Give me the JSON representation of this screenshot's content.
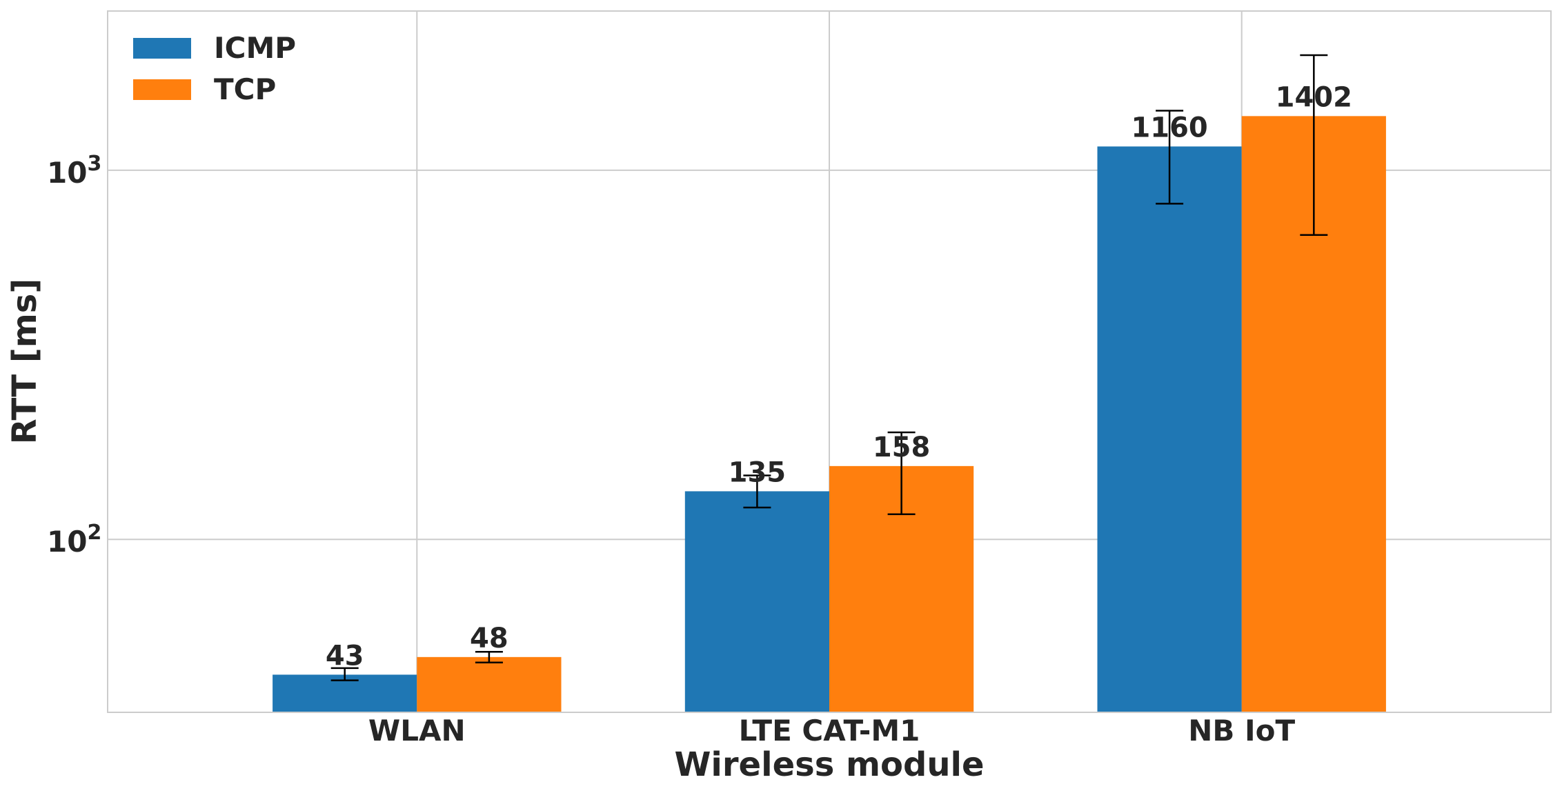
{
  "chart_data": {
    "type": "bar",
    "yscale": "log",
    "categories": [
      "WLAN",
      "LTE CAT-M1",
      "NB IoT"
    ],
    "series": [
      {
        "name": "ICMP",
        "color": "#1f77b4",
        "values": [
          43,
          135,
          1160
        ],
        "error_low": [
          41.5,
          122,
          812
        ],
        "error_high": [
          44.8,
          149,
          1450
        ]
      },
      {
        "name": "TCP",
        "color": "#ff7f0e",
        "values": [
          48,
          158,
          1402
        ],
        "error_low": [
          46.4,
          117,
          668
        ],
        "error_high": [
          49.6,
          195,
          2050
        ]
      }
    ],
    "data_labels": [
      [
        "43",
        "135",
        "1160"
      ],
      [
        "48",
        "158",
        "1402"
      ]
    ],
    "xlabel": "Wireless module",
    "ylabel": "RTT [ms]",
    "ylim": [
      34,
      2700
    ],
    "yticks": [
      {
        "value": 100,
        "base": "10",
        "exp": "2"
      },
      {
        "value": 1000,
        "base": "10",
        "exp": "3"
      }
    ],
    "grid": true,
    "legend_position": "top-left"
  }
}
